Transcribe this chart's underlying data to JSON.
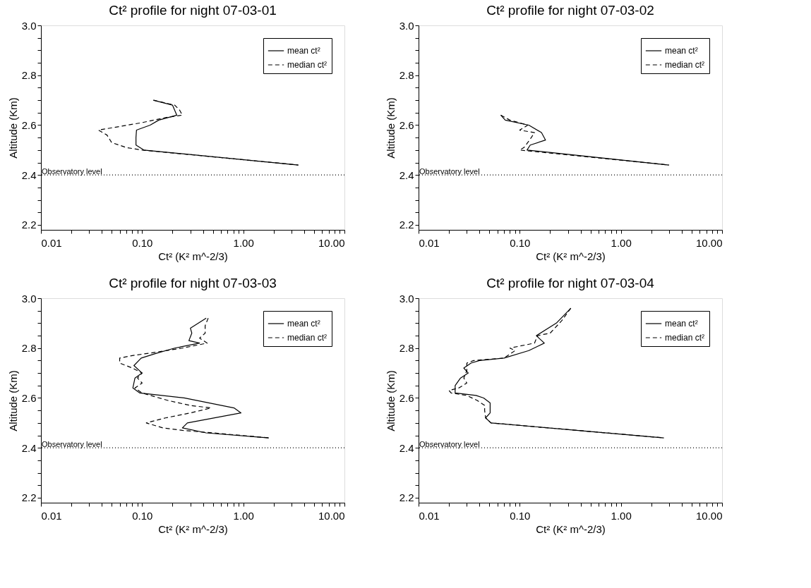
{
  "chart_data": [
    {
      "type": "line",
      "title": "Ct² profile for night 07-03-01",
      "xlabel": "Ct² (K²  m^-2/3)",
      "ylabel": "Altitude (Km)",
      "log": "x",
      "grid": false,
      "legend": "top right",
      "marker": "none",
      "xlim": [
        0.01,
        10
      ],
      "ylim": [
        2.18,
        3.0
      ],
      "xticks": [
        {
          "value": 0.01,
          "label": "0.01"
        },
        {
          "value": 0.02,
          "label": null
        },
        {
          "value": 0.03,
          "label": null
        },
        {
          "value": 0.04,
          "label": null
        },
        {
          "value": 0.05,
          "label": null
        },
        {
          "value": 0.06,
          "label": null
        },
        {
          "value": 0.07,
          "label": null
        },
        {
          "value": 0.08,
          "label": null
        },
        {
          "value": 0.09,
          "label": null
        },
        {
          "value": 0.1,
          "label": "0.10"
        },
        {
          "value": 0.2,
          "label": null
        },
        {
          "value": 0.3,
          "label": null
        },
        {
          "value": 0.4,
          "label": null
        },
        {
          "value": 0.5,
          "label": null
        },
        {
          "value": 0.6,
          "label": null
        },
        {
          "value": 0.7,
          "label": null
        },
        {
          "value": 0.8,
          "label": null
        },
        {
          "value": 0.9,
          "label": null
        },
        {
          "value": 1,
          "label": "1.00"
        },
        {
          "value": 2,
          "label": null
        },
        {
          "value": 3,
          "label": null
        },
        {
          "value": 4,
          "label": null
        },
        {
          "value": 5,
          "label": null
        },
        {
          "value": 6,
          "label": null
        },
        {
          "value": 7,
          "label": null
        },
        {
          "value": 8,
          "label": null
        },
        {
          "value": 9,
          "label": null
        },
        {
          "value": 10,
          "label": "10.00"
        }
      ],
      "yticks": [
        2.2,
        {
          "value": 2.25,
          "label": null
        },
        {
          "value": 2.3,
          "label": null
        },
        {
          "value": 2.35,
          "label": null
        },
        2.4,
        {
          "value": 2.45,
          "label": null
        },
        {
          "value": 2.5,
          "label": null
        },
        {
          "value": 2.55,
          "label": null
        },
        2.6,
        {
          "value": 2.65,
          "label": null
        },
        {
          "value": 2.7,
          "label": null
        },
        {
          "value": 2.75,
          "label": null
        },
        2.8,
        {
          "value": 2.85,
          "label": null
        },
        {
          "value": 2.9,
          "label": null
        },
        {
          "value": 2.95,
          "label": null
        },
        {
          "value": 3.0,
          "label": "3.0"
        }
      ],
      "ref_lines": [
        {
          "axis": "y",
          "value": 2.4,
          "label": "Observatory level",
          "color": "#000000",
          "line_style": "dotted"
        }
      ],
      "series": [
        {
          "name": "mean ct²",
          "color": "#000000",
          "line_style": "solid",
          "x": [
            0.129,
            0.2,
            0.22,
            0.146,
            0.12,
            0.088,
            0.087,
            0.087,
            0.104,
            3.5
          ],
          "values": [
            2.7,
            2.68,
            2.64,
            2.62,
            2.6,
            2.58,
            2.55,
            2.52,
            2.5,
            2.44
          ]
        },
        {
          "name": "median ct²",
          "color": "#000000",
          "line_style": "dashed",
          "x": [
            0.13,
            0.21,
            0.235,
            0.25,
            0.17,
            0.1,
            0.037,
            0.045,
            0.05,
            0.07,
            0.1,
            3.5
          ],
          "values": [
            2.7,
            2.68,
            2.66,
            2.64,
            2.63,
            2.61,
            2.58,
            2.56,
            2.53,
            2.51,
            2.5,
            2.44
          ]
        }
      ]
    },
    {
      "type": "line",
      "title": "Ct² profile for night 07-03-02",
      "xlabel": "Ct² (K²  m^-2/3)",
      "ylabel": "Altitude (Km)",
      "log": "x",
      "grid": false,
      "legend": "top right",
      "marker": "none",
      "xlim": [
        0.01,
        10
      ],
      "ylim": [
        2.18,
        3.0
      ],
      "xticks": [
        {
          "value": 0.01,
          "label": "0.01"
        },
        {
          "value": 0.02,
          "label": null
        },
        {
          "value": 0.03,
          "label": null
        },
        {
          "value": 0.04,
          "label": null
        },
        {
          "value": 0.05,
          "label": null
        },
        {
          "value": 0.06,
          "label": null
        },
        {
          "value": 0.07,
          "label": null
        },
        {
          "value": 0.08,
          "label": null
        },
        {
          "value": 0.09,
          "label": null
        },
        {
          "value": 0.1,
          "label": "0.10"
        },
        {
          "value": 0.2,
          "label": null
        },
        {
          "value": 0.3,
          "label": null
        },
        {
          "value": 0.4,
          "label": null
        },
        {
          "value": 0.5,
          "label": null
        },
        {
          "value": 0.6,
          "label": null
        },
        {
          "value": 0.7,
          "label": null
        },
        {
          "value": 0.8,
          "label": null
        },
        {
          "value": 0.9,
          "label": null
        },
        {
          "value": 1,
          "label": "1.00"
        },
        {
          "value": 2,
          "label": null
        },
        {
          "value": 3,
          "label": null
        },
        {
          "value": 4,
          "label": null
        },
        {
          "value": 5,
          "label": null
        },
        {
          "value": 6,
          "label": null
        },
        {
          "value": 7,
          "label": null
        },
        {
          "value": 8,
          "label": null
        },
        {
          "value": 9,
          "label": null
        },
        {
          "value": 10,
          "label": "10.00"
        }
      ],
      "yticks": [
        2.2,
        {
          "value": 2.25,
          "label": null
        },
        {
          "value": 2.3,
          "label": null
        },
        {
          "value": 2.35,
          "label": null
        },
        2.4,
        {
          "value": 2.45,
          "label": null
        },
        {
          "value": 2.5,
          "label": null
        },
        {
          "value": 2.55,
          "label": null
        },
        2.6,
        {
          "value": 2.65,
          "label": null
        },
        {
          "value": 2.7,
          "label": null
        },
        {
          "value": 2.75,
          "label": null
        },
        2.8,
        {
          "value": 2.85,
          "label": null
        },
        {
          "value": 2.9,
          "label": null
        },
        {
          "value": 2.95,
          "label": null
        },
        {
          "value": 3.0,
          "label": "3.0"
        }
      ],
      "ref_lines": [
        {
          "axis": "y",
          "value": 2.4,
          "label": "Observatory level",
          "color": "#000000",
          "line_style": "dotted"
        }
      ],
      "series": [
        {
          "name": "mean ct²",
          "color": "#000000",
          "line_style": "solid",
          "x": [
            0.065,
            0.072,
            0.123,
            0.164,
            0.18,
            0.127,
            0.118,
            2.98
          ],
          "values": [
            2.64,
            2.62,
            2.6,
            2.57,
            2.54,
            2.52,
            2.5,
            2.44
          ]
        },
        {
          "name": "median ct²",
          "color": "#000000",
          "line_style": "dashed",
          "x": [
            0.065,
            0.08,
            0.12,
            0.1,
            0.14,
            0.13,
            0.12,
            0.11,
            0.1,
            2.98
          ],
          "values": [
            2.64,
            2.62,
            2.6,
            2.58,
            2.57,
            2.55,
            2.53,
            2.51,
            2.5,
            2.44
          ]
        }
      ]
    },
    {
      "type": "line",
      "title": "Ct² profile for night 07-03-03",
      "xlabel": "Ct² (K²  m^-2/3)",
      "ylabel": "Altitude (Km)",
      "log": "x",
      "grid": false,
      "legend": "top right",
      "marker": "none",
      "xlim": [
        0.01,
        10
      ],
      "ylim": [
        2.18,
        3.0
      ],
      "xticks": [
        {
          "value": 0.01,
          "label": "0.01"
        },
        {
          "value": 0.02,
          "label": null
        },
        {
          "value": 0.03,
          "label": null
        },
        {
          "value": 0.04,
          "label": null
        },
        {
          "value": 0.05,
          "label": null
        },
        {
          "value": 0.06,
          "label": null
        },
        {
          "value": 0.07,
          "label": null
        },
        {
          "value": 0.08,
          "label": null
        },
        {
          "value": 0.09,
          "label": null
        },
        {
          "value": 0.1,
          "label": "0.10"
        },
        {
          "value": 0.2,
          "label": null
        },
        {
          "value": 0.3,
          "label": null
        },
        {
          "value": 0.4,
          "label": null
        },
        {
          "value": 0.5,
          "label": null
        },
        {
          "value": 0.6,
          "label": null
        },
        {
          "value": 0.7,
          "label": null
        },
        {
          "value": 0.8,
          "label": null
        },
        {
          "value": 0.9,
          "label": null
        },
        {
          "value": 1,
          "label": "1.00"
        },
        {
          "value": 2,
          "label": null
        },
        {
          "value": 3,
          "label": null
        },
        {
          "value": 4,
          "label": null
        },
        {
          "value": 5,
          "label": null
        },
        {
          "value": 6,
          "label": null
        },
        {
          "value": 7,
          "label": null
        },
        {
          "value": 8,
          "label": null
        },
        {
          "value": 9,
          "label": null
        },
        {
          "value": 10,
          "label": "10.00"
        }
      ],
      "yticks": [
        2.2,
        {
          "value": 2.25,
          "label": null
        },
        {
          "value": 2.3,
          "label": null
        },
        {
          "value": 2.35,
          "label": null
        },
        2.4,
        {
          "value": 2.45,
          "label": null
        },
        {
          "value": 2.5,
          "label": null
        },
        {
          "value": 2.55,
          "label": null
        },
        2.6,
        {
          "value": 2.65,
          "label": null
        },
        {
          "value": 2.7,
          "label": null
        },
        {
          "value": 2.75,
          "label": null
        },
        2.8,
        {
          "value": 2.85,
          "label": null
        },
        {
          "value": 2.9,
          "label": null
        },
        {
          "value": 2.95,
          "label": null
        },
        {
          "value": 3.0,
          "label": "3.0"
        }
      ],
      "ref_lines": [
        {
          "axis": "y",
          "value": 2.4,
          "label": "Observatory level",
          "color": "#000000",
          "line_style": "dotted"
        }
      ],
      "series": [
        {
          "name": "mean ct²",
          "color": "#000000",
          "line_style": "solid",
          "x": [
            0.43,
            0.3,
            0.31,
            0.29,
            0.37,
            0.21,
            0.14,
            0.098,
            0.083,
            0.1,
            0.085,
            0.081,
            0.095,
            0.26,
            0.81,
            0.95,
            0.28,
            0.25,
            0.43,
            1.79
          ],
          "values": [
            2.92,
            2.88,
            2.86,
            2.83,
            2.82,
            2.8,
            2.78,
            2.76,
            2.73,
            2.7,
            2.68,
            2.64,
            2.62,
            2.6,
            2.56,
            2.54,
            2.5,
            2.48,
            2.46,
            2.44
          ]
        },
        {
          "name": "median ct²",
          "color": "#000000",
          "line_style": "dashed",
          "x": [
            0.45,
            0.42,
            0.42,
            0.37,
            0.44,
            0.25,
            0.12,
            0.08,
            0.06,
            0.06,
            0.08,
            0.1,
            0.09,
            0.1,
            0.085,
            0.1,
            0.18,
            0.3,
            0.48,
            0.3,
            0.17,
            0.11,
            0.16,
            0.25,
            0.5,
            1.79
          ],
          "values": [
            2.92,
            2.89,
            2.86,
            2.84,
            2.82,
            2.8,
            2.78,
            2.77,
            2.76,
            2.74,
            2.72,
            2.7,
            2.68,
            2.66,
            2.64,
            2.62,
            2.59,
            2.57,
            2.56,
            2.54,
            2.52,
            2.5,
            2.48,
            2.47,
            2.46,
            2.44
          ]
        }
      ]
    },
    {
      "type": "line",
      "title": "Ct² profile for night 07-03-04",
      "xlabel": "Ct² (K²  m^-2/3)",
      "ylabel": "Altitude (Km)",
      "log": "x",
      "grid": false,
      "legend": "top right",
      "marker": "none",
      "xlim": [
        0.01,
        10
      ],
      "ylim": [
        2.18,
        3.0
      ],
      "xticks": [
        {
          "value": 0.01,
          "label": "0.01"
        },
        {
          "value": 0.02,
          "label": null
        },
        {
          "value": 0.03,
          "label": null
        },
        {
          "value": 0.04,
          "label": null
        },
        {
          "value": 0.05,
          "label": null
        },
        {
          "value": 0.06,
          "label": null
        },
        {
          "value": 0.07,
          "label": null
        },
        {
          "value": 0.08,
          "label": null
        },
        {
          "value": 0.09,
          "label": null
        },
        {
          "value": 0.1,
          "label": "0.10"
        },
        {
          "value": 0.2,
          "label": null
        },
        {
          "value": 0.3,
          "label": null
        },
        {
          "value": 0.4,
          "label": null
        },
        {
          "value": 0.5,
          "label": null
        },
        {
          "value": 0.6,
          "label": null
        },
        {
          "value": 0.7,
          "label": null
        },
        {
          "value": 0.8,
          "label": null
        },
        {
          "value": 0.9,
          "label": null
        },
        {
          "value": 1,
          "label": "1.00"
        },
        {
          "value": 2,
          "label": null
        },
        {
          "value": 3,
          "label": null
        },
        {
          "value": 4,
          "label": null
        },
        {
          "value": 5,
          "label": null
        },
        {
          "value": 6,
          "label": null
        },
        {
          "value": 7,
          "label": null
        },
        {
          "value": 8,
          "label": null
        },
        {
          "value": 9,
          "label": null
        },
        {
          "value": 10,
          "label": "10.00"
        }
      ],
      "yticks": [
        2.2,
        {
          "value": 2.25,
          "label": null
        },
        {
          "value": 2.3,
          "label": null
        },
        {
          "value": 2.35,
          "label": null
        },
        2.4,
        {
          "value": 2.45,
          "label": null
        },
        {
          "value": 2.5,
          "label": null
        },
        {
          "value": 2.55,
          "label": null
        },
        2.6,
        {
          "value": 2.65,
          "label": null
        },
        {
          "value": 2.7,
          "label": null
        },
        {
          "value": 2.75,
          "label": null
        },
        2.8,
        {
          "value": 2.85,
          "label": null
        },
        {
          "value": 2.9,
          "label": null
        },
        {
          "value": 2.95,
          "label": null
        },
        {
          "value": 3.0,
          "label": "3.0"
        }
      ],
      "ref_lines": [
        {
          "axis": "y",
          "value": 2.4,
          "label": "Observatory level",
          "color": "#000000",
          "line_style": "dotted"
        }
      ],
      "series": [
        {
          "name": "mean ct²",
          "color": "#000000",
          "line_style": "solid",
          "x": [
            0.32,
            0.23,
            0.146,
            0.155,
            0.175,
            0.123,
            0.07,
            0.04,
            0.033,
            0.028,
            0.031,
            0.026,
            0.023,
            0.023,
            0.037,
            0.044,
            0.051,
            0.051,
            0.046,
            0.052,
            2.66
          ],
          "values": [
            2.96,
            2.9,
            2.85,
            2.84,
            2.82,
            2.79,
            2.76,
            2.75,
            2.74,
            2.72,
            2.7,
            2.68,
            2.65,
            2.62,
            2.61,
            2.6,
            2.58,
            2.54,
            2.52,
            2.5,
            2.44
          ]
        },
        {
          "name": "median ct²",
          "color": "#000000",
          "line_style": "dashed",
          "x": [
            0.32,
            0.26,
            0.2,
            0.15,
            0.14,
            0.08,
            0.09,
            0.07,
            0.035,
            0.03,
            0.03,
            0.028,
            0.03,
            0.025,
            0.02,
            0.021,
            0.03,
            0.038,
            0.045,
            0.045,
            0.046,
            0.052,
            2.66
          ],
          "values": [
            2.96,
            2.91,
            2.86,
            2.85,
            2.82,
            2.8,
            2.79,
            2.76,
            2.75,
            2.74,
            2.71,
            2.68,
            2.66,
            2.64,
            2.63,
            2.62,
            2.61,
            2.59,
            2.57,
            2.55,
            2.52,
            2.5,
            2.44
          ]
        }
      ]
    }
  ]
}
